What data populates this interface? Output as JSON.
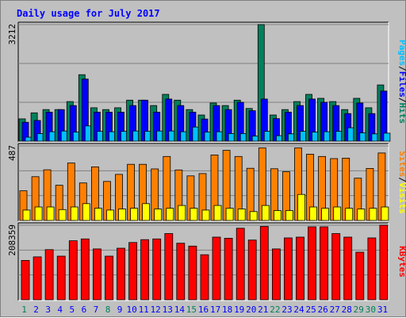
{
  "title": "Daily usage for July 2017",
  "colors": {
    "title": "#0000ff",
    "hits": "#00805c",
    "files": "#0000ff",
    "pages": "#00c0ff",
    "visits": "#ffff00",
    "sites": "#ff8000",
    "kbytes": "#ff0000",
    "weekend_label": "#00805c",
    "weekday_label": "#0000ff",
    "plot_bg": "#c0c0c0",
    "grid": "#808080"
  },
  "days": [
    "1",
    "2",
    "3",
    "4",
    "5",
    "6",
    "7",
    "8",
    "9",
    "10",
    "11",
    "12",
    "13",
    "14",
    "15",
    "16",
    "17",
    "18",
    "19",
    "20",
    "21",
    "22",
    "23",
    "24",
    "25",
    "26",
    "27",
    "28",
    "29",
    "30",
    "31"
  ],
  "weekend_days": [
    1,
    8,
    15,
    22,
    29,
    30
  ],
  "chart_data": [
    {
      "type": "bar",
      "panel": "top",
      "ymax_label": "3212",
      "ylim": [
        0,
        3212
      ],
      "legend": [
        "Pages",
        "Files",
        "Hits"
      ],
      "legend_separator": "/",
      "series": [
        {
          "name": "Hits",
          "color": "#00805c",
          "values": [
            613,
            780,
            870,
            870,
            1090,
            1830,
            920,
            870,
            920,
            1130,
            1130,
            980,
            1290,
            1130,
            870,
            720,
            1050,
            980,
            1130,
            900,
            3212,
            720,
            870,
            1090,
            1290,
            1180,
            1090,
            870,
            1180,
            920,
            1550
          ]
        },
        {
          "name": "Files",
          "color": "#0000ff",
          "values": [
            520,
            570,
            800,
            870,
            980,
            1710,
            800,
            800,
            800,
            980,
            1130,
            800,
            1160,
            980,
            800,
            610,
            980,
            870,
            1070,
            840,
            1160,
            620,
            800,
            980,
            1160,
            1070,
            980,
            760,
            1050,
            760,
            1380
          ]
        },
        {
          "name": "Pages",
          "color": "#00c0ff",
          "values": [
            110,
            210,
            260,
            280,
            250,
            420,
            270,
            260,
            270,
            280,
            270,
            280,
            280,
            260,
            390,
            250,
            260,
            210,
            210,
            140,
            270,
            150,
            200,
            270,
            250,
            260,
            270,
            370,
            230,
            200,
            220
          ]
        }
      ]
    },
    {
      "type": "bar",
      "panel": "middle",
      "ymax_label": "487",
      "ylim": [
        0,
        487
      ],
      "legend": [
        "Sites",
        "Visits"
      ],
      "legend_separator": "/",
      "series": [
        {
          "name": "Sites",
          "color": "#ff8000",
          "values": [
            194,
            286,
            331,
            230,
            375,
            245,
            350,
            255,
            301,
            367,
            367,
            337,
            418,
            330,
            291,
            306,
            428,
            458,
            418,
            341,
            474,
            338,
            318,
            474,
            433,
            418,
            404,
            407,
            276,
            340,
            441
          ]
        },
        {
          "name": "Visits",
          "color": "#ffff00",
          "values": [
            68,
            88,
            88,
            71,
            88,
            110,
            80,
            68,
            75,
            80,
            110,
            75,
            80,
            98,
            80,
            68,
            98,
            80,
            75,
            58,
            98,
            65,
            65,
            170,
            88,
            80,
            88,
            80,
            75,
            80,
            88
          ]
        }
      ]
    },
    {
      "type": "bar",
      "panel": "bottom",
      "ymax_label": "208359",
      "ylim": [
        0,
        208359
      ],
      "legend": [
        "KBytes"
      ],
      "series": [
        {
          "name": "KBytes",
          "color": "#ff0000",
          "values": [
            110000,
            120000,
            140000,
            122000,
            165000,
            170000,
            142000,
            122000,
            144000,
            160000,
            168000,
            170000,
            185000,
            158000,
            150000,
            126000,
            175000,
            172000,
            200000,
            167000,
            205000,
            142000,
            173000,
            175000,
            204000,
            204000,
            185000,
            175000,
            133000,
            173000,
            208359
          ]
        }
      ]
    }
  ]
}
